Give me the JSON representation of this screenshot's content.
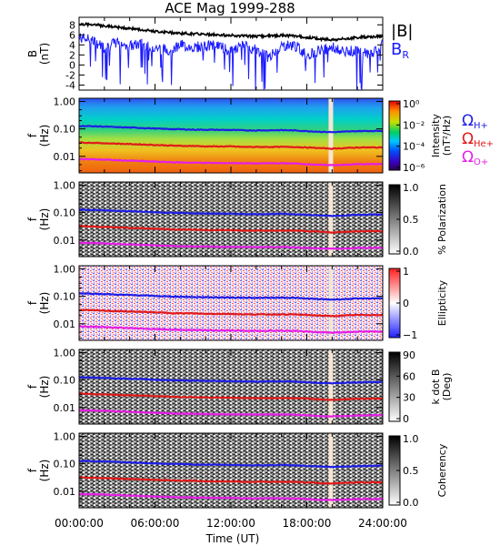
{
  "title": "ACE Mag 1999-288",
  "xlabel": "Time (UT)",
  "x_ticks": [
    "00:00:00",
    "06:00:00",
    "12:00:00",
    "18:00:00",
    "24:00:00"
  ],
  "legend": {
    "b_total": {
      "label": "|B|",
      "color": "#000000"
    },
    "b_r": {
      "label": "B",
      "sub": "R",
      "color": "#1a1aff"
    },
    "cyclotron": [
      {
        "label": "Ω",
        "sub": "H+",
        "color": "#1e1ee6"
      },
      {
        "label": "Ω",
        "sub": "He+",
        "color": "#e01a1a"
      },
      {
        "label": "Ω",
        "sub": "O+",
        "color": "#e61ee6"
      }
    ]
  },
  "panels": [
    {
      "id": "field",
      "ylabel1": "B",
      "ylabel2": "(nT)",
      "yticks": [
        "8",
        "6",
        "4",
        "2",
        "0",
        "-2",
        "-4"
      ]
    },
    {
      "id": "intensity",
      "ylabel1": "f",
      "ylabel2": "(Hz)",
      "yticks": [
        "1.00",
        "0.10",
        "0.01"
      ],
      "cbar_label1": "Intensity",
      "cbar_label2": "(nT²/Hz)",
      "cbar_ticks": [
        "10⁰",
        "10⁻²",
        "10⁻⁴",
        "10⁻⁶"
      ]
    },
    {
      "id": "polarization",
      "ylabel1": "f",
      "ylabel2": "(Hz)",
      "yticks": [
        "1.00",
        "0.10",
        "0.01"
      ],
      "cbar_label1": "% Polarization",
      "cbar_label2": "",
      "cbar_ticks": [
        "1.0",
        "0.5",
        "0.0"
      ]
    },
    {
      "id": "ellipticity",
      "ylabel1": "f",
      "ylabel2": "(Hz)",
      "yticks": [
        "1.00",
        "0.10",
        "0.01"
      ],
      "cbar_label1": "Ellipticity",
      "cbar_label2": "",
      "cbar_ticks": [
        "1",
        "0",
        "−1"
      ]
    },
    {
      "id": "kdotb",
      "ylabel1": "f",
      "ylabel2": "(Hz)",
      "yticks": [
        "1.00",
        "0.10",
        "0.01"
      ],
      "cbar_label1": "k dot B",
      "cbar_label2": "(Deg)",
      "cbar_ticks": [
        "90",
        "60",
        "30",
        "0"
      ]
    },
    {
      "id": "coherency",
      "ylabel1": "f",
      "ylabel2": "(Hz)",
      "yticks": [
        "1.00",
        "0.10",
        "0.01"
      ],
      "cbar_label1": "Coherency",
      "cbar_label2": "",
      "cbar_ticks": [
        "1.0",
        "0.5",
        "0.0"
      ]
    }
  ],
  "chart_data": {
    "type": "line",
    "x_unit": "hours UT",
    "xlim": [
      0,
      24
    ],
    "field": {
      "ylim": [
        -5,
        9.5
      ],
      "series": [
        {
          "name": "|B|",
          "x": [
            0,
            1,
            2,
            3,
            4,
            5,
            6,
            7,
            8,
            9,
            10,
            11,
            12,
            13,
            14,
            15,
            16,
            17,
            18,
            19,
            20,
            21,
            22,
            23,
            24
          ],
          "values": [
            8.2,
            8.0,
            7.8,
            7.5,
            7.3,
            7.0,
            6.7,
            6.5,
            6.3,
            6.2,
            6.1,
            6.0,
            5.9,
            5.8,
            5.7,
            5.8,
            5.9,
            5.8,
            5.5,
            5.2,
            5.0,
            5.2,
            5.5,
            5.6,
            5.7
          ]
        },
        {
          "name": "B_R",
          "x": [
            0,
            1,
            2,
            3,
            4,
            5,
            6,
            7,
            8,
            9,
            10,
            11,
            12,
            13,
            14,
            15,
            16,
            17,
            18,
            19,
            20,
            21,
            22,
            23,
            24
          ],
          "values": [
            5.5,
            5.0,
            3.5,
            4.5,
            3.8,
            4.2,
            3.5,
            3.0,
            4.0,
            3.5,
            3.8,
            4.0,
            2.5,
            4.0,
            3.0,
            1.5,
            3.8,
            4.0,
            2.0,
            3.0,
            3.5,
            2.5,
            3.0,
            2.0,
            4.5
          ]
        }
      ]
    },
    "cyclotron_frequency": {
      "yscale": "log",
      "ylim": [
        0.0025,
        1.3
      ],
      "x": [
        0,
        1,
        2,
        3,
        4,
        5,
        6,
        7,
        8,
        9,
        10,
        11,
        12,
        13,
        14,
        15,
        16,
        17,
        18,
        19,
        20,
        21,
        22,
        23,
        24
      ],
      "series": [
        {
          "name": "H+",
          "values": [
            0.128,
            0.125,
            0.121,
            0.115,
            0.112,
            0.108,
            0.103,
            0.099,
            0.097,
            0.094,
            0.093,
            0.092,
            0.091,
            0.089,
            0.088,
            0.089,
            0.09,
            0.088,
            0.083,
            0.079,
            0.076,
            0.079,
            0.083,
            0.084,
            0.085
          ]
        },
        {
          "name": "He+",
          "values": [
            0.032,
            0.031,
            0.03,
            0.029,
            0.028,
            0.027,
            0.026,
            0.025,
            0.024,
            0.024,
            0.023,
            0.023,
            0.023,
            0.022,
            0.022,
            0.022,
            0.022,
            0.022,
            0.021,
            0.02,
            0.019,
            0.02,
            0.021,
            0.021,
            0.021
          ]
        },
        {
          "name": "O+",
          "values": [
            0.008,
            0.0078,
            0.0076,
            0.0072,
            0.007,
            0.0067,
            0.0064,
            0.0062,
            0.006,
            0.0059,
            0.0058,
            0.0057,
            0.0057,
            0.0056,
            0.0055,
            0.0056,
            0.0056,
            0.0055,
            0.0052,
            0.0049,
            0.0048,
            0.0049,
            0.0052,
            0.0052,
            0.0053
          ]
        }
      ]
    },
    "data_gap_hour": 19.9
  }
}
